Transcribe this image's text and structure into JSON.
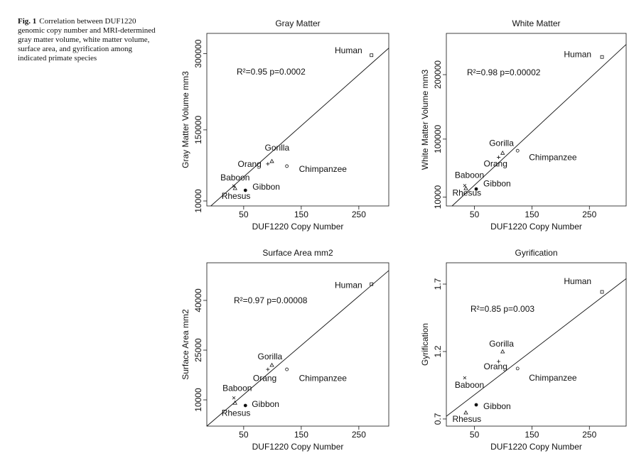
{
  "caption": {
    "label": "Fig. 1",
    "text": "Correlation between DUF1220 genomic copy number and MRI-determined gray matter volume, white matter volume, surface area, and gyrification among indicated primate species"
  },
  "chart_data": [
    {
      "type": "scatter",
      "title": "Gray Matter",
      "x_label": "DUF1220 Copy Number",
      "y_label": "Gray Matter Volume mm3",
      "categories": [
        "Human",
        "Chimpanzee",
        "Gorilla",
        "Orang",
        "Baboon",
        "Rhesus",
        "Gibbon"
      ],
      "markers": [
        "square",
        "circle",
        "triangle",
        "plus",
        "cross",
        "triangle",
        "dot"
      ],
      "x": [
        272,
        125,
        99,
        92,
        33,
        35,
        53
      ],
      "values": [
        297000,
        78600,
        88400,
        83000,
        39400,
        35200,
        31000
      ],
      "fit": {
        "x": [
          -7,
          302
        ],
        "values": [
          200,
          311000
        ]
      },
      "annotation": "R²=0.95 p=0.0002",
      "xlim": [
        -14,
        302
      ],
      "xticks": [
        50,
        150,
        250
      ],
      "ylim": [
        200,
        340000
      ],
      "yticks": [
        10000,
        150000,
        300000
      ]
    },
    {
      "type": "scatter",
      "title": "White Matter",
      "x_label": "DUF1220 Copy Number",
      "y_label": "White Matter Volume mm3",
      "categories": [
        "Human",
        "Chimpanzee",
        "Gorilla",
        "Orang",
        "Baboon",
        "Rhesus",
        "Gibbon"
      ],
      "markers": [
        "square",
        "circle",
        "triangle",
        "plus",
        "cross",
        "triangle",
        "dot"
      ],
      "x": [
        272,
        125,
        99,
        92,
        33,
        35,
        53
      ],
      "values": [
        227400,
        82000,
        78600,
        71700,
        28000,
        23700,
        22600
      ],
      "fit": {
        "x": [
          11,
          314
        ],
        "values": [
          -3700,
          246900
        ]
      },
      "annotation": "R²=0.98 p=0.00002",
      "xlim": [
        1,
        314
      ],
      "xticks": [
        50,
        150,
        250
      ],
      "ylim": [
        -3700,
        264000
      ],
      "yticks": [
        10000,
        100000,
        200000
      ]
    },
    {
      "type": "scatter",
      "title": "Surface Area mm2",
      "x_label": "DUF1220 Copy Number",
      "y_label": "Surface Area mm2",
      "categories": [
        "Human",
        "Chimpanzee",
        "Gorilla",
        "Orang",
        "Baboon",
        "Rhesus",
        "Gibbon"
      ],
      "markers": [
        "square",
        "circle",
        "triangle",
        "plus",
        "cross",
        "triangle",
        "dot"
      ],
      "x": [
        272,
        125,
        99,
        92,
        33,
        35,
        53
      ],
      "values": [
        44900,
        19200,
        20500,
        19200,
        10600,
        9100,
        8300
      ],
      "fit": {
        "x": [
          -14,
          302
        ],
        "values": [
          2080,
          49000
        ]
      },
      "annotation": "R²=0.97 p=0.00008",
      "xlim": [
        -14,
        302
      ],
      "xticks": [
        50,
        150,
        250
      ],
      "ylim": [
        2080,
        51350
      ],
      "yticks": [
        10000,
        25000,
        40000
      ]
    },
    {
      "type": "scatter",
      "title": "Gyrification",
      "x_label": "DUF1220 Copy Number",
      "y_label": "Gyrification",
      "categories": [
        "Human",
        "Chimpanzee",
        "Gorilla",
        "Orang",
        "Baboon",
        "Rhesus",
        "Gibbon"
      ],
      "markers": [
        "square",
        "circle",
        "triangle",
        "plus",
        "cross",
        "triangle",
        "dot"
      ],
      "x": [
        272,
        125,
        99,
        92,
        33,
        35,
        53
      ],
      "values": [
        1.642,
        1.074,
        1.2,
        1.126,
        1.005,
        0.747,
        0.805
      ],
      "fit": {
        "x": [
          1,
          314
        ],
        "values": [
          0.72,
          1.74
        ]
      },
      "annotation": "R²=0.85 p=0.003",
      "xlim": [
        1,
        314
      ],
      "xticks": [
        50,
        150,
        250
      ],
      "ylim": [
        0.647,
        1.858
      ],
      "yticks": [
        0.7,
        1.2,
        1.7
      ]
    }
  ]
}
